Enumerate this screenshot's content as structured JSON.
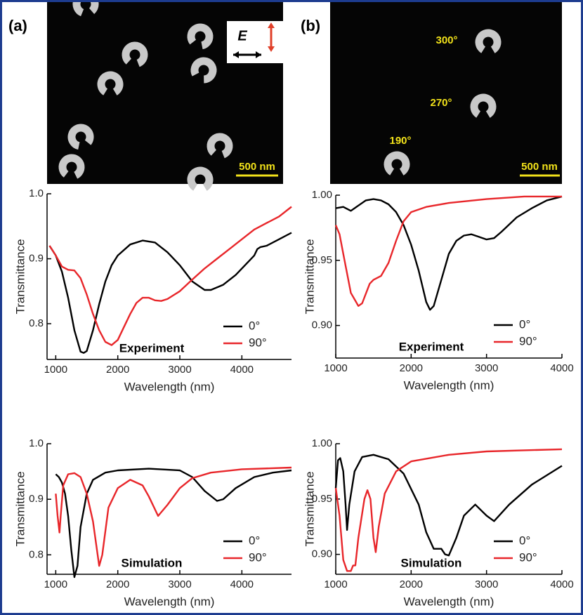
{
  "figure": {
    "panel_labels": [
      "(a)",
      "(b)"
    ],
    "sem_a": {
      "field_label": "E",
      "scale_bar": "500 nm"
    },
    "sem_b": {
      "scale_bar": "500 nm",
      "angles": [
        "300°",
        "270°",
        "190°"
      ]
    }
  },
  "chart_data": [
    {
      "type": "line",
      "xlabel": "Wavelength (nm)",
      "ylabel": "Transmittance",
      "annotation": "Experiment",
      "legend": "lower right",
      "xlim": [
        860,
        4800
      ],
      "xticks": [
        1000,
        2000,
        3000,
        4000
      ],
      "ylim": [
        0.745,
        1.0
      ],
      "yticks": [
        0.8,
        0.9,
        {
          "value": 1.0,
          "label": "1.0"
        }
      ],
      "series": [
        {
          "name": "0°",
          "color": "#000000",
          "x": [
            900,
            1000,
            1100,
            1200,
            1300,
            1400,
            1450,
            1500,
            1600,
            1700,
            1800,
            1900,
            2000,
            2200,
            2400,
            2600,
            2800,
            3000,
            3200,
            3400,
            3500,
            3700,
            3900,
            4100,
            4200,
            4250,
            4300,
            4400,
            4600,
            4800
          ],
          "values": [
            0.92,
            0.905,
            0.88,
            0.84,
            0.79,
            0.757,
            0.755,
            0.758,
            0.79,
            0.83,
            0.865,
            0.89,
            0.905,
            0.922,
            0.928,
            0.925,
            0.91,
            0.89,
            0.865,
            0.852,
            0.852,
            0.86,
            0.875,
            0.895,
            0.905,
            0.915,
            0.918,
            0.92,
            0.93,
            0.94
          ]
        },
        {
          "name": "90°",
          "color": "#e8262a",
          "x": [
            900,
            1000,
            1100,
            1200,
            1300,
            1400,
            1500,
            1600,
            1700,
            1800,
            1900,
            2000,
            2100,
            2200,
            2300,
            2400,
            2500,
            2600,
            2700,
            2800,
            3000,
            3200,
            3400,
            3600,
            3800,
            4000,
            4200,
            4400,
            4600,
            4800
          ],
          "values": [
            0.92,
            0.905,
            0.888,
            0.883,
            0.882,
            0.87,
            0.845,
            0.815,
            0.79,
            0.772,
            0.767,
            0.775,
            0.795,
            0.815,
            0.832,
            0.84,
            0.84,
            0.836,
            0.835,
            0.838,
            0.85,
            0.868,
            0.885,
            0.9,
            0.915,
            0.93,
            0.945,
            0.955,
            0.965,
            0.98
          ]
        }
      ]
    },
    {
      "type": "line",
      "xlabel": "Wavelength (nm)",
      "ylabel": "Transmittance",
      "annotation": "Experiment",
      "legend": "lower right",
      "xlim": [
        1000,
        4000
      ],
      "xticks": [
        1000,
        2000,
        3000,
        4000
      ],
      "ylim": [
        0.875,
        1.0
      ],
      "yticks": [
        {
          "value": 0.9,
          "label": "0.90"
        },
        0.95,
        {
          "value": 1.0,
          "label": "1.00"
        }
      ],
      "series": [
        {
          "name": "0°",
          "color": "#000000",
          "x": [
            1000,
            1100,
            1200,
            1300,
            1400,
            1500,
            1600,
            1700,
            1800,
            1900,
            2000,
            2100,
            2200,
            2250,
            2300,
            2400,
            2500,
            2600,
            2700,
            2800,
            2900,
            3000,
            3100,
            3200,
            3400,
            3600,
            3800,
            4000
          ],
          "values": [
            0.99,
            0.991,
            0.988,
            0.992,
            0.996,
            0.997,
            0.996,
            0.993,
            0.987,
            0.977,
            0.962,
            0.942,
            0.918,
            0.912,
            0.915,
            0.935,
            0.955,
            0.965,
            0.969,
            0.97,
            0.968,
            0.966,
            0.967,
            0.972,
            0.983,
            0.99,
            0.996,
            0.999
          ]
        },
        {
          "name": "90°",
          "color": "#e8262a",
          "x": [
            1000,
            1050,
            1100,
            1200,
            1300,
            1350,
            1450,
            1500,
            1600,
            1700,
            1800,
            1900,
            2000,
            2200,
            2500,
            3000,
            3500,
            4000
          ],
          "values": [
            0.977,
            0.97,
            0.955,
            0.925,
            0.915,
            0.917,
            0.932,
            0.935,
            0.938,
            0.948,
            0.965,
            0.98,
            0.987,
            0.991,
            0.994,
            0.997,
            0.999,
            0.999
          ]
        }
      ]
    },
    {
      "type": "line",
      "xlabel": "Wavelength (nm)",
      "ylabel": "Transmittance",
      "annotation": "Simulation",
      "legend": "lower right",
      "xlim": [
        860,
        4800
      ],
      "xticks": [
        1000,
        2000,
        3000,
        4000
      ],
      "ylim": [
        0.765,
        1.0
      ],
      "yticks": [
        0.8,
        0.9,
        {
          "value": 1.0,
          "label": "1.0"
        }
      ],
      "series": [
        {
          "name": "0°",
          "color": "#000000",
          "x": [
            1000,
            1050,
            1100,
            1150,
            1200,
            1250,
            1300,
            1350,
            1400,
            1500,
            1600,
            1800,
            2000,
            2500,
            3000,
            3200,
            3400,
            3600,
            3700,
            3900,
            4200,
            4500,
            4800
          ],
          "values": [
            0.945,
            0.94,
            0.93,
            0.91,
            0.87,
            0.81,
            0.76,
            0.78,
            0.85,
            0.91,
            0.935,
            0.948,
            0.952,
            0.955,
            0.952,
            0.94,
            0.915,
            0.897,
            0.9,
            0.92,
            0.94,
            0.948,
            0.952
          ]
        },
        {
          "name": "90°",
          "color": "#e8262a",
          "x": [
            1000,
            1030,
            1060,
            1080,
            1120,
            1200,
            1300,
            1400,
            1500,
            1600,
            1700,
            1750,
            1850,
            2000,
            2200,
            2400,
            2500,
            2650,
            2800,
            3000,
            3200,
            3500,
            4000,
            4800
          ],
          "values": [
            0.91,
            0.87,
            0.84,
            0.87,
            0.925,
            0.945,
            0.947,
            0.94,
            0.91,
            0.86,
            0.78,
            0.8,
            0.885,
            0.92,
            0.935,
            0.925,
            0.905,
            0.87,
            0.89,
            0.92,
            0.938,
            0.948,
            0.954,
            0.957
          ]
        }
      ]
    },
    {
      "type": "line",
      "xlabel": "Wavelength (nm)",
      "ylabel": "Transmittance",
      "annotation": "Simulation",
      "legend": "lower right",
      "xlim": [
        1000,
        4000
      ],
      "xticks": [
        1000,
        2000,
        3000,
        4000
      ],
      "ylim": [
        0.882,
        1.0
      ],
      "yticks": [
        {
          "value": 0.9,
          "label": "0.90"
        },
        0.95,
        {
          "value": 1.0,
          "label": "1.00"
        }
      ],
      "series": [
        {
          "name": "0°",
          "color": "#000000",
          "x": [
            1000,
            1030,
            1060,
            1100,
            1130,
            1150,
            1180,
            1250,
            1350,
            1500,
            1700,
            1900,
            2100,
            2200,
            2300,
            2400,
            2450,
            2500,
            2600,
            2700,
            2850,
            3000,
            3100,
            3300,
            3600,
            4000
          ],
          "values": [
            0.96,
            0.985,
            0.987,
            0.975,
            0.945,
            0.922,
            0.945,
            0.975,
            0.988,
            0.99,
            0.986,
            0.973,
            0.945,
            0.92,
            0.905,
            0.905,
            0.9,
            0.899,
            0.915,
            0.935,
            0.945,
            0.935,
            0.93,
            0.945,
            0.963,
            0.98
          ]
        },
        {
          "name": "90°",
          "color": "#e8262a",
          "x": [
            1000,
            1050,
            1100,
            1150,
            1200,
            1230,
            1260,
            1300,
            1380,
            1420,
            1460,
            1500,
            1530,
            1570,
            1650,
            1800,
            2000,
            2500,
            3000,
            4000
          ],
          "values": [
            0.96,
            0.935,
            0.895,
            0.885,
            0.885,
            0.89,
            0.89,
            0.915,
            0.95,
            0.958,
            0.95,
            0.915,
            0.902,
            0.925,
            0.955,
            0.975,
            0.984,
            0.99,
            0.993,
            0.995
          ]
        }
      ]
    }
  ]
}
